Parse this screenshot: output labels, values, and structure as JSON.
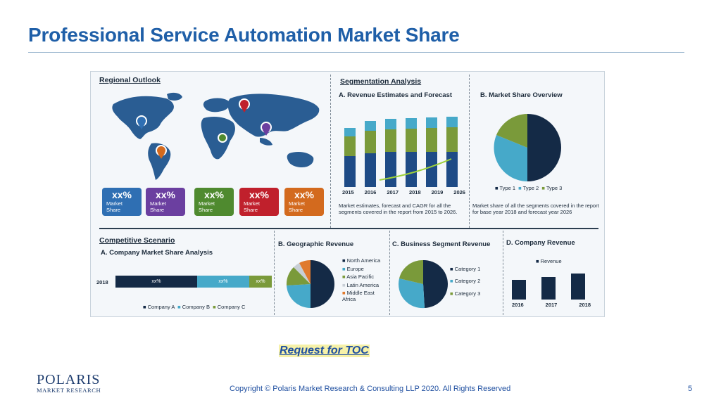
{
  "slide": {
    "title": "Professional Service Automation Market Share",
    "request_link": "Request for TOC",
    "copyright": "Copyright © Polaris Market Research & Consulting LLP 2020. All Rights Reserved",
    "page_number": "5",
    "logo": {
      "line1": "POLARIS",
      "line2": "MARKET RESEARCH"
    }
  },
  "infographic": {
    "regional_outlook": {
      "title": "Regional Outlook",
      "boxes": [
        {
          "pct": "xx%",
          "label1": "Market",
          "label2": "Share",
          "color": "#2f6fb3"
        },
        {
          "pct": "xx%",
          "label1": "Market",
          "label2": "Share",
          "color": "#6b3fa0"
        },
        {
          "pct": "xx%",
          "label1": "Market",
          "label2": "Share",
          "color": "#4f8a2f"
        },
        {
          "pct": "xx%",
          "label1": "Market",
          "label2": "Share",
          "color": "#c0202c"
        },
        {
          "pct": "xx%",
          "label1": "Market",
          "label2": "Share",
          "color": "#d36a1e"
        }
      ]
    },
    "segmentation": {
      "title": "Segmentation Analysis",
      "revenue_title": "A. Revenue Estimates and Forecast",
      "years": [
        "2015",
        "2016",
        "2017",
        "2018",
        "2019",
        "2026"
      ],
      "revenue_note": "Market estimates, forecast and CAGR for all the segments covered in the report from 2015 to 2026.",
      "share_title": "B. Market Share Overview",
      "share_legend": [
        "Type 1",
        "Type 2",
        "Type 3"
      ],
      "share_note": "Market share of all the segments covered in the report for base year 2018 and forecast year 2026"
    },
    "competitive": {
      "title": "Competitive Scenario",
      "subtitle": "A. Company Market Share Analysis",
      "year": "2018",
      "segments": [
        "xx%",
        "xx%",
        "xx%"
      ],
      "legend": [
        "Company A",
        "Company B",
        "Company C"
      ]
    },
    "geographic": {
      "title": "B. Geographic Revenue",
      "legend": [
        "North America",
        "Europe",
        "Asia Pacific",
        "Latin America",
        "Middle East Africa"
      ]
    },
    "business": {
      "title": "C. Business Segment Revenue",
      "legend": [
        "Category 1",
        "Category 2",
        "Category 3"
      ]
    },
    "company_revenue": {
      "title": "D. Company Revenue",
      "legend": "Revenue",
      "years": [
        "2016",
        "2017",
        "2018"
      ]
    }
  },
  "colors": {
    "title_blue": "#1f5fa8",
    "navy": "#142a46",
    "teal": "#46a9c9",
    "olive": "#7a9a3a",
    "orange": "#e07a2e",
    "light_gray": "#c8cfd6"
  }
}
